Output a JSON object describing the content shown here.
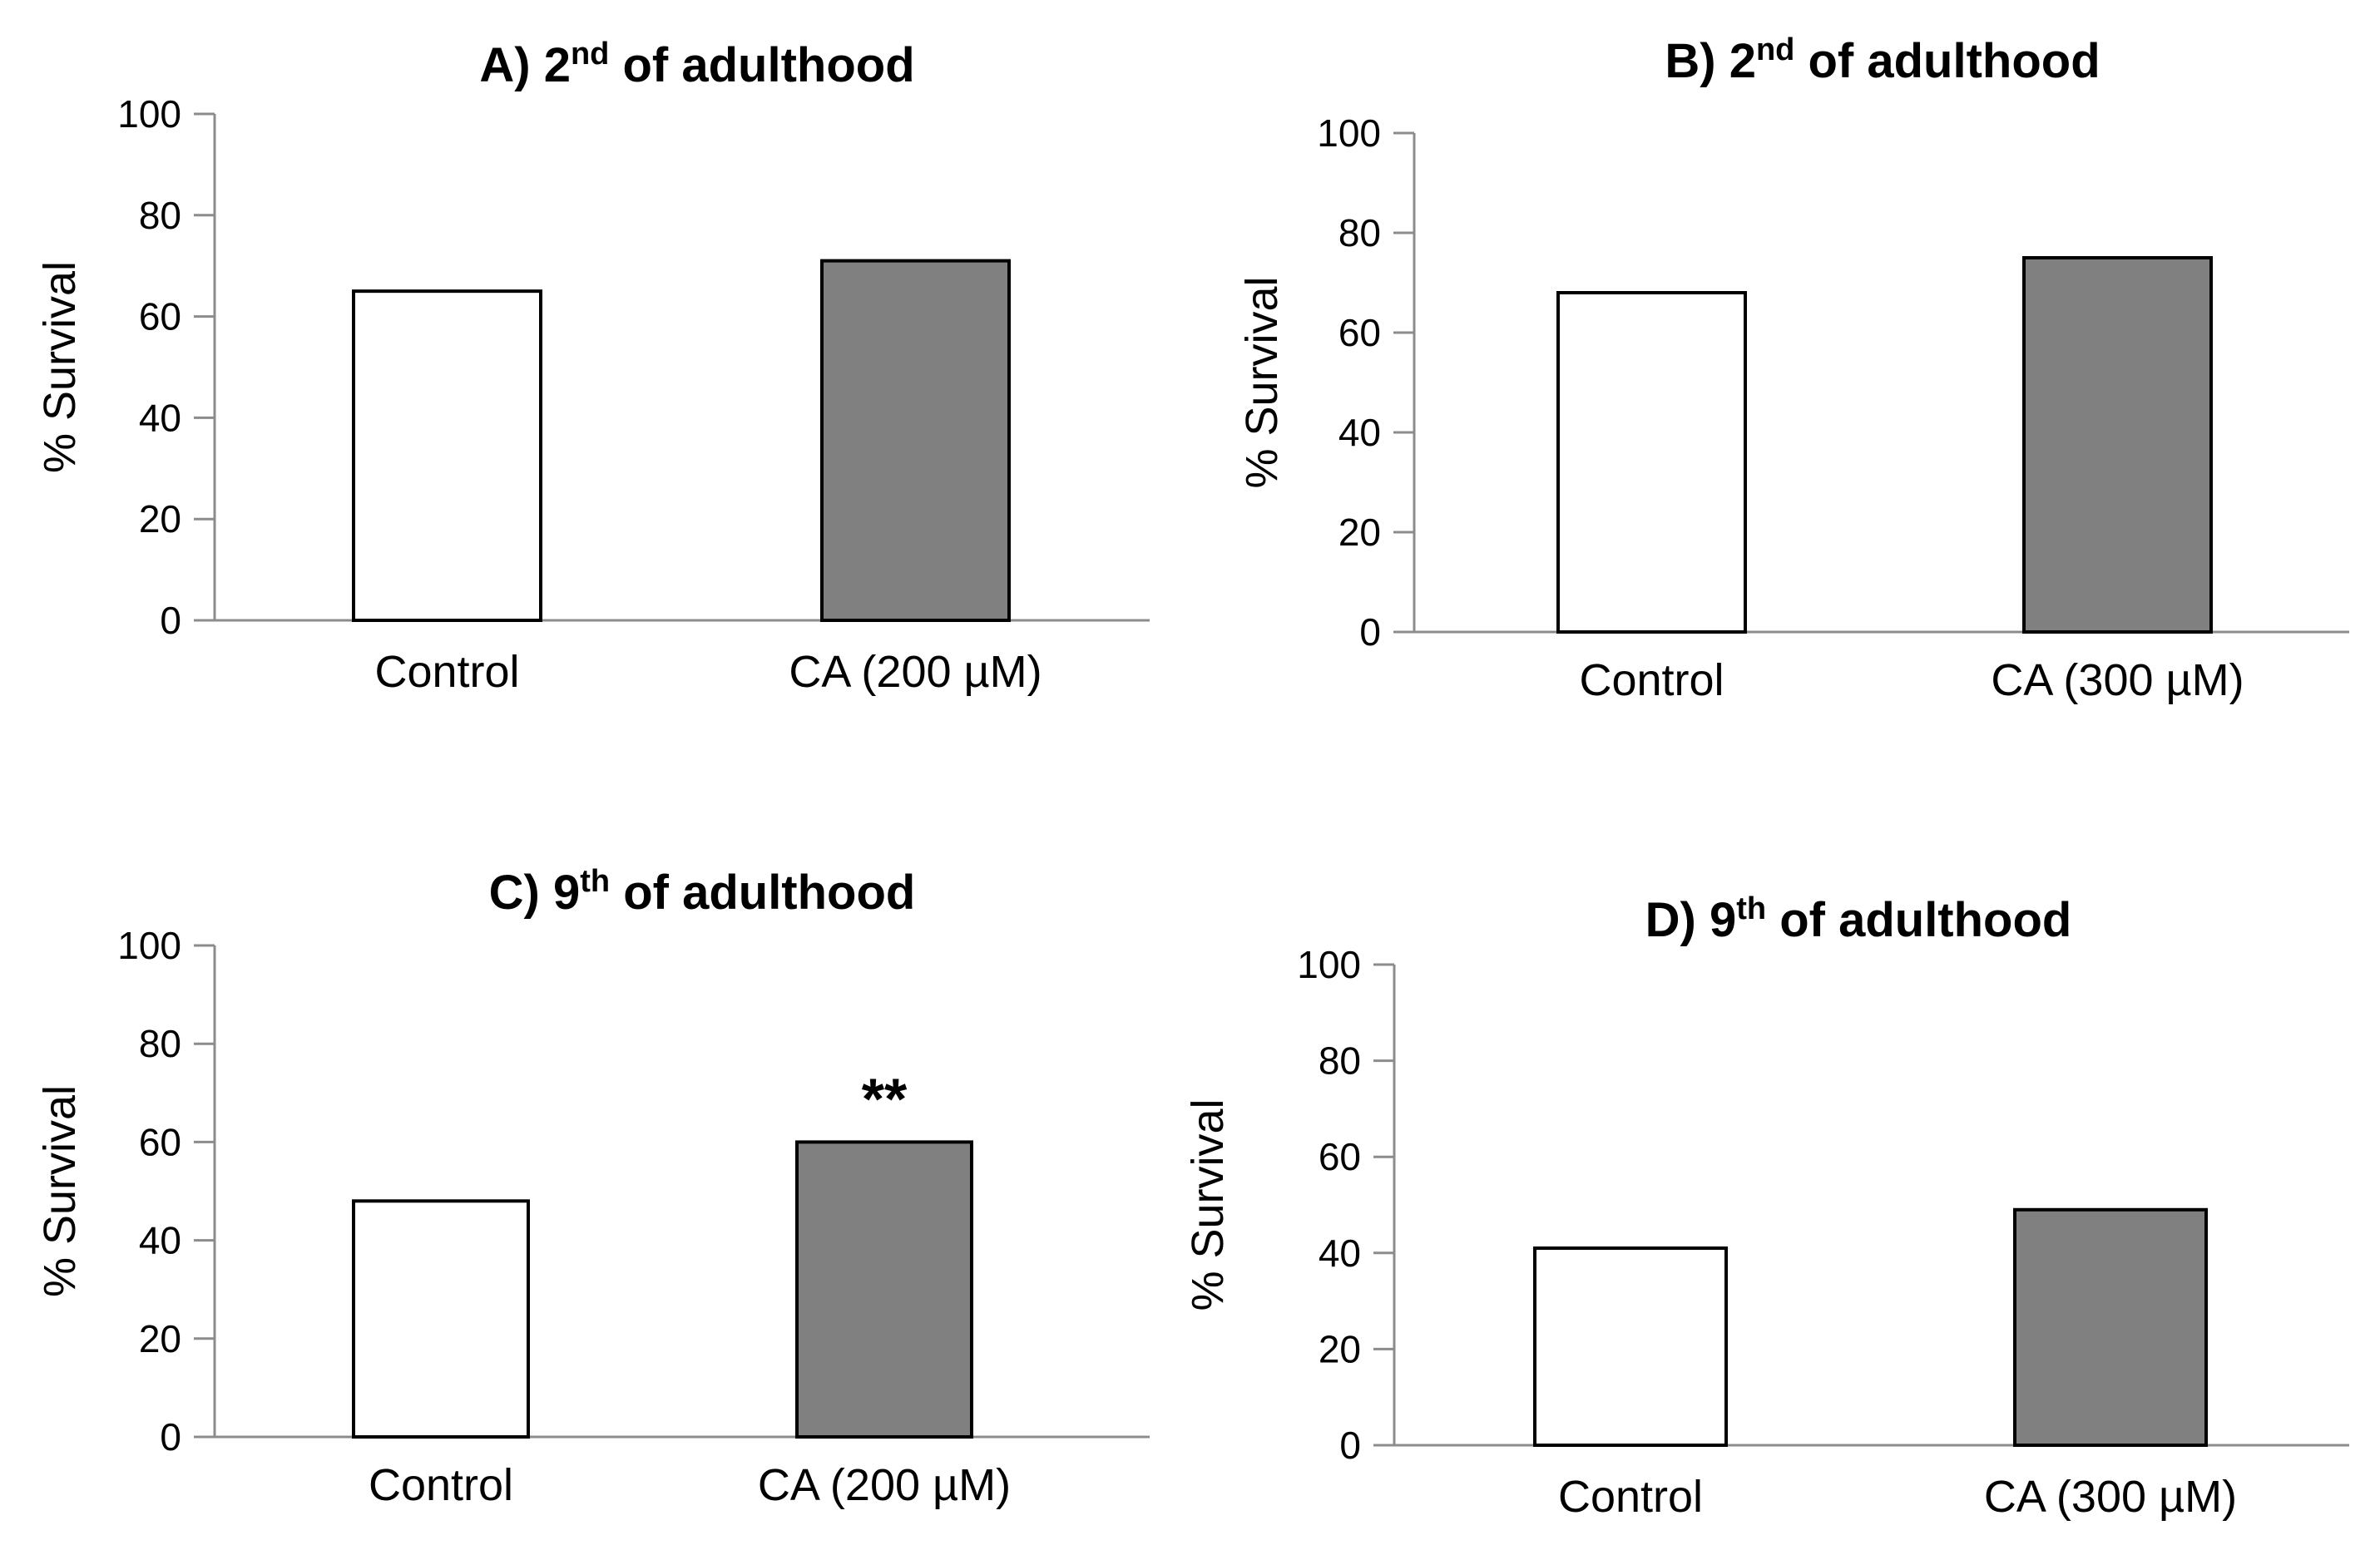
{
  "chart_data": [
    {
      "type": "bar",
      "title": {
        "prefix": "A) 2",
        "sup": "nd",
        "suffix": " of adulthood"
      },
      "ylabel": "% Survival",
      "ylim": [
        0,
        100
      ],
      "yticks": [
        0,
        20,
        40,
        60,
        80,
        100
      ],
      "categories": [
        "Control",
        "CA  (200 µM)"
      ],
      "values": [
        65,
        71
      ],
      "bar_colors": [
        "#ffffff",
        "#808080"
      ],
      "annotations": [
        "",
        ""
      ]
    },
    {
      "type": "bar",
      "title": {
        "prefix": "B) 2",
        "sup": "nd",
        "suffix": " of adulthood"
      },
      "ylabel": "% Survival",
      "ylim": [
        0,
        100
      ],
      "yticks": [
        0,
        20,
        40,
        60,
        80,
        100
      ],
      "categories": [
        "Control",
        "CA  (300 µM)"
      ],
      "values": [
        68,
        75
      ],
      "bar_colors": [
        "#ffffff",
        "#808080"
      ],
      "annotations": [
        "",
        ""
      ]
    },
    {
      "type": "bar",
      "title": {
        "prefix": "C) 9",
        "sup": "th",
        "suffix": " of adulthood"
      },
      "ylabel": "% Survival",
      "ylim": [
        0,
        100
      ],
      "yticks": [
        0,
        20,
        40,
        60,
        80,
        100
      ],
      "categories": [
        "Control",
        "CA  (200 µM)"
      ],
      "values": [
        48,
        60
      ],
      "bar_colors": [
        "#ffffff",
        "#808080"
      ],
      "annotations": [
        "",
        "**"
      ]
    },
    {
      "type": "bar",
      "title": {
        "prefix": "D) 9",
        "sup": "th",
        "suffix": " of adulthood"
      },
      "ylabel": "% Survival",
      "ylim": [
        0,
        100
      ],
      "yticks": [
        0,
        20,
        40,
        60,
        80,
        100
      ],
      "categories": [
        "Control",
        "CA  (300 µM)"
      ],
      "values": [
        41,
        49
      ],
      "bar_colors": [
        "#ffffff",
        "#808080"
      ],
      "annotations": [
        "",
        ""
      ]
    }
  ]
}
